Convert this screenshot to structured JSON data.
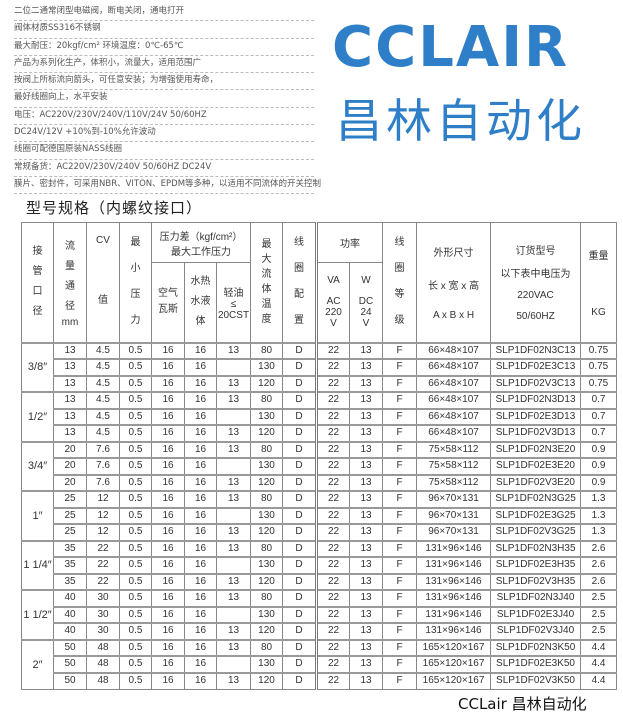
{
  "intro": [
    "二位二通常闭型电磁阀，断电关闭，通电打开",
    "阀体材质SS316不锈钢",
    "最大耐压：20kgf/cm² 环境温度：0℃-65℃",
    "产品为系列化生产，体积小，流量大，适用范围广",
    "按阀上所标流向箭头，可任意安装；为增强使用寿命，",
    "最好线圈向上，水平安装",
    "电压：AC220V/230V/240V/110V/24V 50/60HZ",
    "DC24V/12V  +10%到-10%允许波动",
    "线圈可配德国原装NASS线圈",
    "常规备货：AC220V/230V/240V 50/60HZ DC24V",
    "膜片、密封件，可采用NBR、VITON、EPDM等多种，以适用不同流体的开关控制"
  ],
  "title": "型号规格（内螺纹接口）",
  "header": {
    "port": "接管口径",
    "flow": "流量通径",
    "flow_unit": "mm",
    "cv": "CV",
    "cv_unit": "值",
    "minp": "最小压力",
    "pdiff1": "压力差（kgf/cm²）",
    "pdiff2": "最大工作压力",
    "air": "空气瓦斯",
    "water": "水热水液体",
    "oil1": "轻油",
    "oil2": "≤",
    "oil3": "20CST",
    "temp": "最大流体温度",
    "coil": "线圈配置",
    "power": "功率",
    "va": "VA",
    "ac": "AC 220 V",
    "w": "W",
    "dc": "DC 24 V",
    "grade": "线圈等级",
    "dim1": "外形尺寸",
    "dim2": "长 x 宽 x 高",
    "dim3": "A x B x H",
    "order1": "订货型号",
    "order2": "以下表中电压为",
    "order3": "220VAC",
    "order4": "50/60HZ",
    "weight1": "重量",
    "weight2": "KG"
  },
  "groups": [
    {
      "size": "3/8″",
      "rows": [
        [
          "13",
          "4.5",
          "0.5",
          "16",
          "16",
          "13",
          "80",
          "D",
          "22",
          "13",
          "F",
          "66×48×107",
          "SLP1DF02N3C13",
          "0.75"
        ],
        [
          "13",
          "4.5",
          "0.5",
          "16",
          "16",
          "",
          "130",
          "D",
          "22",
          "13",
          "F",
          "66×48×107",
          "SLP1DF02E3C13",
          "0.75"
        ],
        [
          "13",
          "4.5",
          "0.5",
          "16",
          "16",
          "13",
          "120",
          "D",
          "22",
          "13",
          "F",
          "66×48×107",
          "SLP1DF02V3C13",
          "0.75"
        ]
      ]
    },
    {
      "size": "1/2″",
      "rows": [
        [
          "13",
          "4.5",
          "0.5",
          "16",
          "16",
          "13",
          "80",
          "D",
          "22",
          "13",
          "F",
          "66×48×107",
          "SLP1DF02N3D13",
          "0.7"
        ],
        [
          "13",
          "4.5",
          "0.5",
          "16",
          "16",
          "",
          "130",
          "D",
          "22",
          "13",
          "F",
          "66×48×107",
          "SLP1DF02E3D13",
          "0.7"
        ],
        [
          "13",
          "4.5",
          "0.5",
          "16",
          "16",
          "13",
          "120",
          "D",
          "22",
          "13",
          "F",
          "66×48×107",
          "SLP1DF02V3D13",
          "0.7"
        ]
      ]
    },
    {
      "size": "3/4″",
      "rows": [
        [
          "20",
          "7.6",
          "0.5",
          "16",
          "16",
          "13",
          "80",
          "D",
          "22",
          "13",
          "F",
          "75×58×112",
          "SLP1DF02N3E20",
          "0.9"
        ],
        [
          "20",
          "7.6",
          "0.5",
          "16",
          "16",
          "",
          "130",
          "D",
          "22",
          "13",
          "F",
          "75×58×112",
          "SLP1DF02E3E20",
          "0.9"
        ],
        [
          "20",
          "7.6",
          "0.5",
          "16",
          "16",
          "13",
          "120",
          "D",
          "22",
          "13",
          "F",
          "75×58×112",
          "SLP1DF02V3E20",
          "0.9"
        ]
      ]
    },
    {
      "size": "1″",
      "rows": [
        [
          "25",
          "12",
          "0.5",
          "16",
          "16",
          "13",
          "80",
          "D",
          "22",
          "13",
          "F",
          "96×70×131",
          "SLP1DF02N3G25",
          "1.3"
        ],
        [
          "25",
          "12",
          "0.5",
          "16",
          "16",
          "",
          "130",
          "D",
          "22",
          "13",
          "F",
          "96×70×131",
          "SLP1DF02E3G25",
          "1.3"
        ],
        [
          "25",
          "12",
          "0.5",
          "16",
          "16",
          "13",
          "120",
          "D",
          "22",
          "13",
          "F",
          "96×70×131",
          "SLP1DF02V3G25",
          "1.3"
        ]
      ]
    },
    {
      "size": "1 1/4″",
      "rows": [
        [
          "35",
          "22",
          "0.5",
          "16",
          "16",
          "13",
          "80",
          "D",
          "22",
          "13",
          "F",
          "131×96×146",
          "SLP1DF02N3H35",
          "2.6"
        ],
        [
          "35",
          "22",
          "0.5",
          "16",
          "16",
          "",
          "130",
          "D",
          "22",
          "13",
          "F",
          "131×96×146",
          "SLP1DF02E3H35",
          "2.6"
        ],
        [
          "35",
          "22",
          "0.5",
          "16",
          "16",
          "13",
          "120",
          "D",
          "22",
          "13",
          "F",
          "131×96×146",
          "SLP1DF02V3H35",
          "2.6"
        ]
      ]
    },
    {
      "size": "1 1/2″",
      "rows": [
        [
          "40",
          "30",
          "0.5",
          "16",
          "16",
          "13",
          "80",
          "D",
          "22",
          "13",
          "F",
          "131×96×146",
          "SLP1DF02N3J40",
          "2.5"
        ],
        [
          "40",
          "30",
          "0.5",
          "16",
          "16",
          "",
          "130",
          "D",
          "22",
          "13",
          "F",
          "131×96×146",
          "SLP1DF02E3J40",
          "2.5"
        ],
        [
          "40",
          "30",
          "0.5",
          "16",
          "16",
          "13",
          "120",
          "D",
          "22",
          "13",
          "F",
          "131×96×146",
          "SLP1DF02V3J40",
          "2.5"
        ]
      ]
    },
    {
      "size": "2″",
      "rows": [
        [
          "50",
          "48",
          "0.5",
          "16",
          "16",
          "13",
          "80",
          "D",
          "22",
          "13",
          "F",
          "165×120×167",
          "SLP1DF02N3K50",
          "4.4"
        ],
        [
          "50",
          "48",
          "0.5",
          "16",
          "16",
          "",
          "130",
          "D",
          "22",
          "13",
          "F",
          "165×120×167",
          "SLP1DF02E3K50",
          "4.4"
        ],
        [
          "50",
          "48",
          "0.5",
          "16",
          "16",
          "13",
          "120",
          "D",
          "22",
          "13",
          "F",
          "165×120×167",
          "SLP1DF02V3K50",
          "4.4"
        ]
      ]
    }
  ],
  "watermark": {
    "logo": "CCLAIR",
    "chinese": "昌林自动化",
    "brand": "CCLair 昌林自动化",
    "color": "#2e7fc8"
  }
}
